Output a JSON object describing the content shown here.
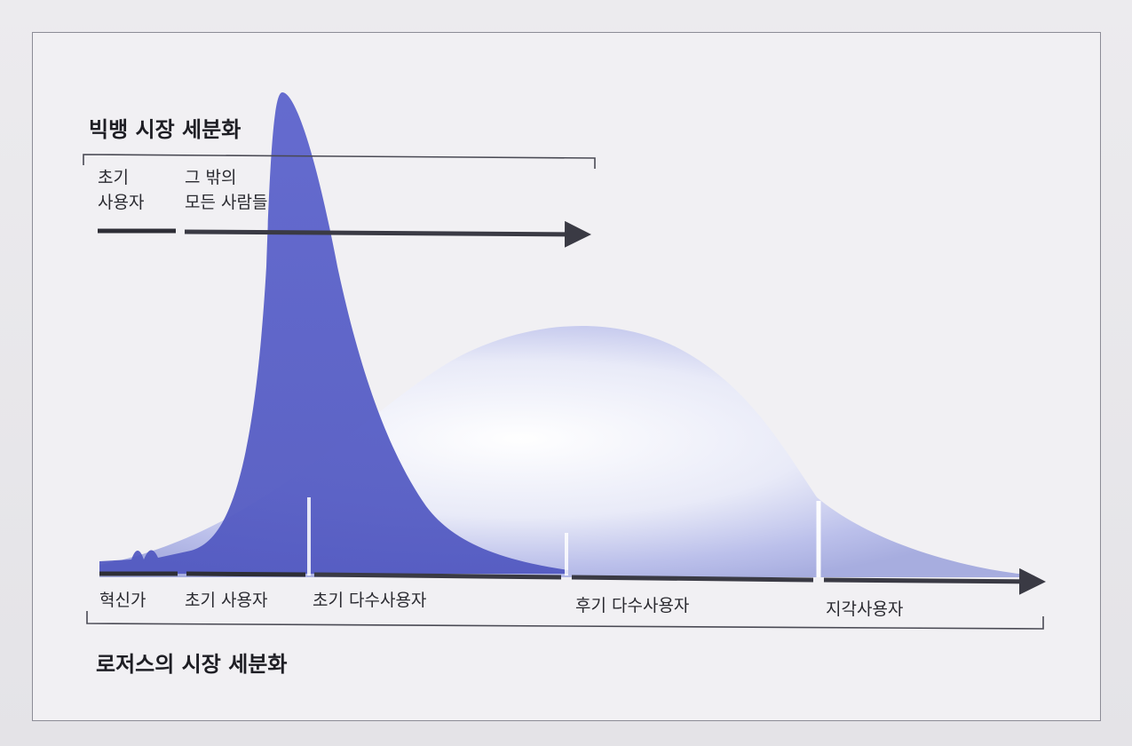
{
  "bigbang": {
    "title": "빅뱅 시장 세분화",
    "early_users_line1": "초기",
    "early_users_line2": "사용자",
    "everyone_else_line1": "그 밖의",
    "everyone_else_line2": "모든 사람들"
  },
  "rogers": {
    "title": "로저스의 시장 세분화",
    "segments": [
      "혁신가",
      "초기 사용자",
      "초기 다수사용자",
      "후기 다수사용자",
      "지각사용자"
    ]
  },
  "colors": {
    "bigbang_curve": "#5c63cc",
    "rogers_curve": "#aab0e8",
    "axis": "#3a3a44"
  }
}
